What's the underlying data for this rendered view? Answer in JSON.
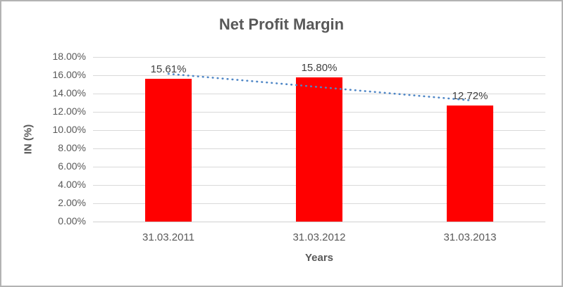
{
  "chart_data": {
    "type": "bar",
    "title": "Net Profit Margin",
    "xlabel": "Years",
    "ylabel": "IN (%)",
    "categories": [
      "31.03.2011",
      "31.03.2012",
      "31.03.2013"
    ],
    "values": [
      15.61,
      15.8,
      12.72
    ],
    "data_labels": [
      "15.61%",
      "15.80%",
      "12.72%"
    ],
    "y_tick_labels": [
      "0.00%",
      "2.00%",
      "4.00%",
      "6.00%",
      "8.00%",
      "10.00%",
      "12.00%",
      "14.00%",
      "16.00%",
      "18.00%"
    ],
    "ylim": [
      0,
      18
    ],
    "y_step": 2,
    "grid": true,
    "legend": "none",
    "bar_color": "#ff0000",
    "gridline_color": "#d9d9d9",
    "axis_line_color": "#d0d0d0",
    "text_color": "#595959",
    "data_label_color": "#404040",
    "trendline": {
      "style": "dotted",
      "color": "#4e86c6",
      "start_value": 16.16,
      "end_value": 13.26
    }
  }
}
